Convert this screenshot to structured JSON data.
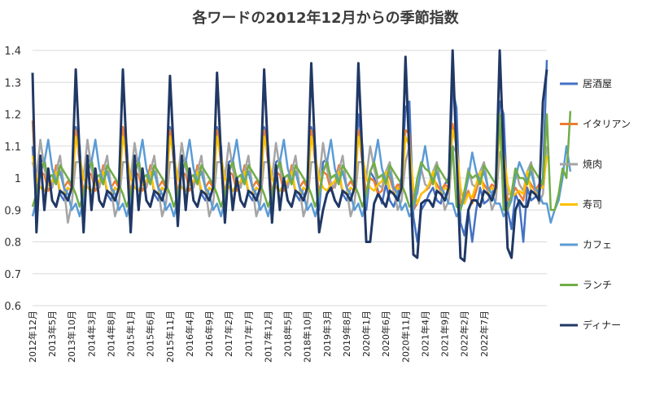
{
  "chart_data": {
    "type": "line",
    "title": "各ワードの2012年12月からの季節指数",
    "xlabel": "",
    "ylabel": "",
    "ylim": [
      0.6,
      1.4
    ],
    "yticks": [
      "0.6",
      "0.7",
      "0.8",
      "0.9",
      "1",
      "1.1",
      "1.2",
      "1.3",
      "1.4"
    ],
    "grid": true,
    "legend_position": "right",
    "x_tick_labels": [
      "2012年12月",
      "2013年5月",
      "2013年10月",
      "2014年3月",
      "2014年8月",
      "2015年1月",
      "2015年6月",
      "2015年11月",
      "2016年4月",
      "2016年9月",
      "2017年2月",
      "2017年7月",
      "2017年12月",
      "2018年5月",
      "2018年10月",
      "2019年3月",
      "2019年8月",
      "2020年1月",
      "2020年6月",
      "2020年11月",
      "2021年4月",
      "2021年9月",
      "2022年2月",
      "2022年7月"
    ],
    "series": [
      {
        "name": "居酒屋",
        "color": "#4472c4",
        "values": [
          1.1,
          0.9,
          1.05,
          1.06,
          0.98,
          0.97,
          1.03,
          0.95,
          0.93,
          0.97,
          0.96,
          1.16,
          1.1,
          0.9,
          1.05,
          1.06,
          0.98,
          0.97,
          1.03,
          0.95,
          0.93,
          0.97,
          0.96,
          1.16,
          1.1,
          0.9,
          1.05,
          1.06,
          0.98,
          0.97,
          1.03,
          0.95,
          0.93,
          0.97,
          0.96,
          1.16,
          1.1,
          0.9,
          1.05,
          1.06,
          0.98,
          0.97,
          1.03,
          0.95,
          0.93,
          0.97,
          0.96,
          1.16,
          1.1,
          0.9,
          1.05,
          1.06,
          0.98,
          0.97,
          1.03,
          0.95,
          0.93,
          0.97,
          0.96,
          1.16,
          1.1,
          0.9,
          1.05,
          1.06,
          0.98,
          0.97,
          1.03,
          0.95,
          0.93,
          0.97,
          0.96,
          1.16,
          1.1,
          0.9,
          1.05,
          1.06,
          0.98,
          0.97,
          1.03,
          0.95,
          0.93,
          0.97,
          0.96,
          1.2,
          1.1,
          0.9,
          1.02,
          1.0,
          0.96,
          0.92,
          0.98,
          0.93,
          0.91,
          0.95,
          1.0,
          1.22,
          1.24,
          0.88,
          0.8,
          0.9,
          0.92,
          0.95,
          0.97,
          0.93,
          0.92,
          0.98,
          1.0,
          1.28,
          1.22,
          0.86,
          0.82,
          0.9,
          0.8,
          0.9,
          0.97,
          0.92,
          0.93,
          0.95,
          0.98,
          1.24,
          1.2,
          0.9,
          0.84,
          0.95,
          0.92,
          0.8,
          0.97,
          0.93,
          0.94,
          0.95,
          1.0,
          1.37
        ]
      },
      {
        "name": "イタリアン",
        "color": "#ed7d31",
        "values": [
          1.18,
          0.95,
          1.02,
          1.01,
          0.96,
          0.98,
          1.04,
          1.02,
          0.97,
          0.99,
          0.97,
          1.15,
          1.05,
          0.95,
          1.02,
          1.01,
          0.96,
          0.98,
          1.04,
          1.02,
          0.97,
          0.99,
          0.97,
          1.16,
          1.05,
          0.95,
          1.02,
          1.01,
          0.96,
          0.98,
          1.04,
          1.02,
          0.97,
          0.99,
          0.97,
          1.15,
          1.05,
          0.95,
          1.02,
          1.01,
          0.96,
          0.98,
          1.04,
          1.02,
          0.97,
          0.99,
          0.97,
          1.15,
          1.05,
          0.95,
          1.02,
          1.01,
          0.96,
          0.98,
          1.04,
          1.02,
          0.97,
          0.99,
          0.97,
          1.15,
          1.05,
          0.95,
          1.02,
          1.01,
          0.96,
          0.98,
          1.04,
          1.02,
          0.97,
          0.99,
          0.97,
          1.15,
          1.05,
          0.95,
          1.02,
          1.01,
          0.96,
          0.98,
          1.04,
          1.02,
          0.97,
          0.99,
          0.97,
          1.15,
          1.05,
          0.95,
          1.0,
          0.99,
          0.95,
          0.96,
          1.02,
          1.0,
          0.96,
          0.98,
          0.97,
          1.15,
          1.14,
          0.9,
          0.92,
          0.95,
          0.96,
          0.97,
          1.0,
          0.98,
          0.96,
          0.98,
          0.97,
          1.17,
          1.1,
          0.92,
          0.93,
          0.96,
          0.92,
          0.96,
          1.0,
          0.98,
          0.96,
          0.98,
          0.97,
          1.18,
          1.08,
          0.93,
          0.94,
          0.97,
          0.95,
          0.93,
          1.0,
          0.98,
          0.96,
          0.98,
          0.98,
          1.2
        ]
      },
      {
        "name": "焼肉",
        "color": "#a5a5a5",
        "values": [
          1.05,
          1.0,
          1.12,
          1.03,
          0.98,
          0.97,
          1.02,
          1.07,
          0.97,
          0.86,
          0.92,
          1.05,
          1.05,
          1.0,
          1.12,
          1.03,
          0.98,
          0.97,
          1.02,
          1.07,
          0.97,
          0.88,
          0.92,
          1.05,
          1.05,
          1.0,
          1.11,
          1.03,
          0.98,
          0.97,
          1.02,
          1.07,
          0.97,
          0.88,
          0.92,
          1.05,
          1.05,
          1.0,
          1.11,
          1.03,
          0.98,
          0.97,
          1.02,
          1.07,
          0.97,
          0.88,
          0.92,
          1.05,
          1.05,
          1.0,
          1.11,
          1.03,
          0.98,
          0.97,
          1.02,
          1.07,
          0.97,
          0.88,
          0.92,
          1.05,
          1.05,
          1.0,
          1.11,
          1.03,
          0.98,
          0.97,
          1.02,
          1.07,
          0.97,
          0.88,
          0.92,
          1.05,
          1.05,
          1.0,
          1.11,
          1.03,
          0.98,
          0.97,
          1.02,
          1.07,
          0.97,
          0.88,
          0.92,
          1.05,
          1.05,
          1.0,
          1.1,
          1.03,
          0.98,
          0.97,
          1.02,
          1.05,
          0.97,
          0.9,
          0.93,
          1.05,
          1.1,
          0.95,
          0.95,
          1.03,
          0.98,
          0.97,
          1.02,
          1.05,
          0.97,
          0.9,
          0.93,
          1.1,
          1.08,
          0.95,
          0.95,
          1.03,
          0.98,
          0.97,
          1.02,
          1.05,
          0.97,
          0.9,
          0.93,
          1.08,
          1.09,
          0.95,
          0.95,
          1.03,
          0.98,
          0.96,
          1.02,
          1.05,
          0.97,
          0.92,
          0.95,
          1.1
        ]
      },
      {
        "name": "寿司",
        "color": "#ffc000",
        "values": [
          1.07,
          1.0,
          0.97,
          0.96,
          0.98,
          0.99,
          1.02,
          0.96,
          0.95,
          0.97,
          0.96,
          1.13,
          1.07,
          1.0,
          0.97,
          0.96,
          0.98,
          0.99,
          1.02,
          0.96,
          0.95,
          0.97,
          0.96,
          1.13,
          1.07,
          1.0,
          0.97,
          0.96,
          0.98,
          0.99,
          1.02,
          0.96,
          0.95,
          0.97,
          0.96,
          1.13,
          1.07,
          1.0,
          0.97,
          0.96,
          0.98,
          0.99,
          1.02,
          0.96,
          0.95,
          0.97,
          0.96,
          1.13,
          1.07,
          1.0,
          0.97,
          0.96,
          0.98,
          0.99,
          1.02,
          0.96,
          0.95,
          0.97,
          0.96,
          1.13,
          1.07,
          1.0,
          0.97,
          0.96,
          0.98,
          0.99,
          1.02,
          0.96,
          0.95,
          0.97,
          0.96,
          1.13,
          1.07,
          1.0,
          0.97,
          0.96,
          0.98,
          0.99,
          1.02,
          0.96,
          0.95,
          0.97,
          0.96,
          1.13,
          1.07,
          1.0,
          0.97,
          0.96,
          0.98,
          0.99,
          1.02,
          0.96,
          0.95,
          0.97,
          0.96,
          1.13,
          1.1,
          0.97,
          0.92,
          0.95,
          0.96,
          0.98,
          1.02,
          0.96,
          0.95,
          0.97,
          0.96,
          1.15,
          1.1,
          0.97,
          0.92,
          0.95,
          0.94,
          0.98,
          1.02,
          0.96,
          0.95,
          0.97,
          0.96,
          1.16,
          1.08,
          0.98,
          0.94,
          0.95,
          0.96,
          0.95,
          1.02,
          0.96,
          0.95,
          0.97,
          0.97,
          1.07
        ]
      },
      {
        "name": "カフェ",
        "color": "#5b9bd5",
        "values": [
          0.88,
          0.93,
          1.02,
          1.05,
          1.12,
          1.03,
          0.99,
          1.02,
          0.97,
          0.95,
          0.9,
          0.92,
          0.88,
          0.93,
          1.02,
          1.05,
          1.12,
          1.03,
          0.99,
          1.02,
          0.97,
          0.95,
          0.9,
          0.92,
          0.88,
          0.93,
          1.02,
          1.05,
          1.12,
          1.03,
          0.99,
          1.02,
          0.97,
          0.95,
          0.9,
          0.92,
          0.88,
          0.93,
          1.02,
          1.05,
          1.12,
          1.03,
          0.99,
          1.02,
          0.97,
          0.95,
          0.9,
          0.92,
          0.88,
          0.93,
          1.02,
          1.05,
          1.12,
          1.03,
          0.99,
          1.02,
          0.97,
          0.95,
          0.9,
          0.92,
          0.88,
          0.93,
          1.02,
          1.05,
          1.12,
          1.03,
          0.99,
          1.02,
          0.97,
          0.95,
          0.9,
          0.92,
          0.88,
          0.93,
          1.02,
          1.05,
          1.12,
          1.03,
          0.99,
          1.02,
          0.97,
          0.95,
          0.9,
          0.92,
          0.88,
          0.93,
          1.02,
          1.05,
          1.12,
          1.03,
          0.99,
          1.02,
          0.97,
          0.95,
          0.9,
          0.92,
          0.88,
          0.9,
          0.96,
          1.03,
          1.1,
          1.02,
          0.99,
          1.02,
          0.97,
          0.95,
          0.92,
          0.92,
          0.88,
          0.9,
          0.94,
          1.0,
          1.08,
          1.02,
          0.99,
          1.02,
          0.97,
          0.95,
          0.92,
          0.92,
          0.88,
          0.9,
          0.93,
          1.0,
          1.05,
          1.02,
          0.99,
          1.02,
          0.97,
          0.95,
          0.92,
          0.92,
          0.86,
          0.9,
          0.93,
          1.0,
          1.1,
          1.02
        ]
      },
      {
        "name": "ランチ",
        "color": "#70ad47",
        "values": [
          0.91,
          0.95,
          1.02,
          1.05,
          1.0,
          1.01,
          0.98,
          1.04,
          1.02,
          1.0,
          0.98,
          0.95,
          0.91,
          0.95,
          1.02,
          1.05,
          1.0,
          1.01,
          0.98,
          1.04,
          1.02,
          1.0,
          0.98,
          0.95,
          0.91,
          0.95,
          1.02,
          1.05,
          1.0,
          1.01,
          0.98,
          1.04,
          1.02,
          1.0,
          0.98,
          0.95,
          0.91,
          0.95,
          1.02,
          1.05,
          1.0,
          1.01,
          0.98,
          1.04,
          1.02,
          1.0,
          0.98,
          0.95,
          0.91,
          0.95,
          1.02,
          1.05,
          1.0,
          1.01,
          0.98,
          1.04,
          1.02,
          1.0,
          0.98,
          0.95,
          0.91,
          0.95,
          1.02,
          1.05,
          1.0,
          1.01,
          0.98,
          1.04,
          1.02,
          1.0,
          0.98,
          0.95,
          0.91,
          0.95,
          1.02,
          1.05,
          1.0,
          1.01,
          0.98,
          1.04,
          1.02,
          1.0,
          0.98,
          0.95,
          0.91,
          0.95,
          1.02,
          1.05,
          1.0,
          1.01,
          0.98,
          1.04,
          1.02,
          1.0,
          0.98,
          0.95,
          0.91,
          0.92,
          1.0,
          1.05,
          1.03,
          1.02,
          0.98,
          1.04,
          1.02,
          1.0,
          0.98,
          1.1,
          0.91,
          0.9,
          0.96,
          1.02,
          1.0,
          1.01,
          0.98,
          1.04,
          1.02,
          1.0,
          0.98,
          1.2,
          0.9,
          0.9,
          0.95,
          1.03,
          1.0,
          1.0,
          0.98,
          1.04,
          1.02,
          1.0,
          0.98,
          1.2,
          0.9,
          0.9,
          0.95,
          1.03,
          1.0,
          1.21
        ]
      },
      {
        "name": "ディナー",
        "color": "#203864",
        "values": [
          1.33,
          0.83,
          1.07,
          0.9,
          1.03,
          0.93,
          0.91,
          0.96,
          0.95,
          0.93,
          0.97,
          1.34,
          1.07,
          0.83,
          1.07,
          0.9,
          1.03,
          0.93,
          0.91,
          0.96,
          0.95,
          0.93,
          0.97,
          1.34,
          1.07,
          0.83,
          1.07,
          0.9,
          1.03,
          0.93,
          0.91,
          0.96,
          0.95,
          0.93,
          0.97,
          1.32,
          1.07,
          0.85,
          1.07,
          0.9,
          1.03,
          0.93,
          0.91,
          0.96,
          0.95,
          0.93,
          0.97,
          1.33,
          1.07,
          0.86,
          1.04,
          0.9,
          1.0,
          0.93,
          0.91,
          0.96,
          0.95,
          0.93,
          0.97,
          1.34,
          1.07,
          0.86,
          1.04,
          0.9,
          1.0,
          0.93,
          0.91,
          0.96,
          0.95,
          0.93,
          0.97,
          1.36,
          1.07,
          0.83,
          0.9,
          0.95,
          0.97,
          0.93,
          0.91,
          0.96,
          0.95,
          0.93,
          0.97,
          1.36,
          1.07,
          0.8,
          0.8,
          0.92,
          0.95,
          0.93,
          0.91,
          0.96,
          0.95,
          0.93,
          0.97,
          1.38,
          1.07,
          0.76,
          0.75,
          0.92,
          0.93,
          0.93,
          0.91,
          0.96,
          0.95,
          0.93,
          0.97,
          1.4,
          1.07,
          0.75,
          0.74,
          0.9,
          0.93,
          0.93,
          0.91,
          0.96,
          0.95,
          0.93,
          0.97,
          1.4,
          1.07,
          0.78,
          0.75,
          0.9,
          0.93,
          0.91,
          0.91,
          0.96,
          0.95,
          0.93,
          1.24,
          1.34
        ]
      }
    ]
  }
}
